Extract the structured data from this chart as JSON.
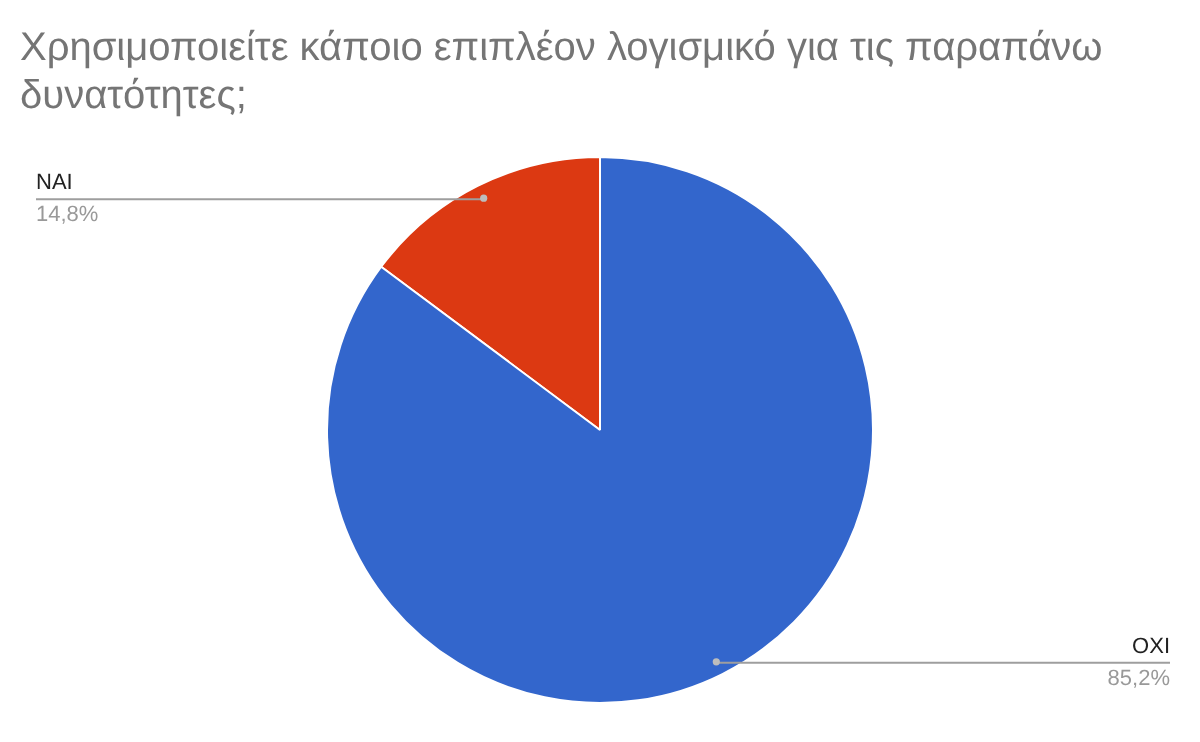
{
  "chart_data": {
    "type": "pie",
    "title": "Χρησιμοποιείτε κάποιο επιπλέον λογισμικό για τις παραπάνω δυνατότητες;",
    "categories": [
      "NAI",
      "OXI"
    ],
    "values": [
      14.8,
      85.2
    ],
    "colors": [
      "#dc3912",
      "#3366cc"
    ],
    "value_labels": [
      "14,8%",
      "85,2%"
    ],
    "legend": false
  }
}
